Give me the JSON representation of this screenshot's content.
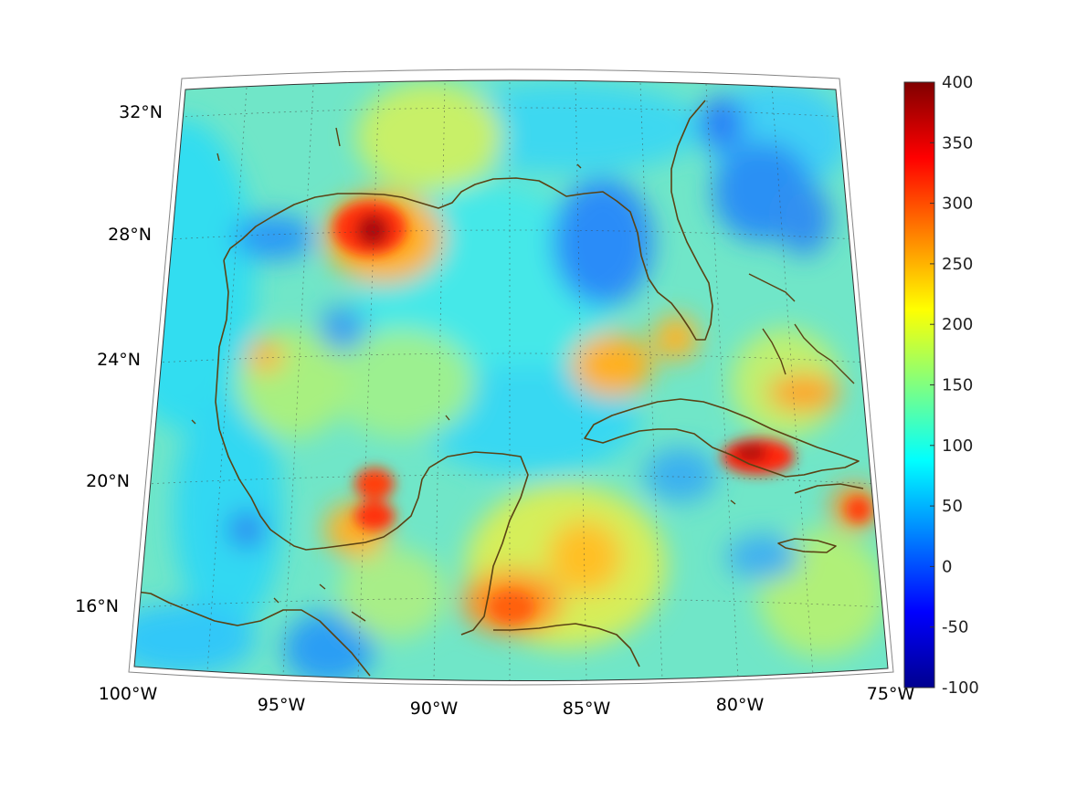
{
  "map": {
    "lon_labels": [
      "100°W",
      "95°W",
      "90°W",
      "85°W",
      "80°W",
      "75°W"
    ],
    "lat_labels": [
      "32°N",
      "28°N",
      "24°N",
      "20°N",
      "16°N"
    ],
    "colorbar": {
      "ticks": [
        "400",
        "350",
        "300",
        "250",
        "200",
        "150",
        "100",
        "50",
        "0",
        "-50",
        "-100"
      ],
      "min": -100,
      "max": 400,
      "colormap": "jet",
      "colors": [
        "#00008f",
        "#0000ff",
        "#0080ff",
        "#00ffff",
        "#80ff80",
        "#ffff00",
        "#ff8000",
        "#ff0000",
        "#800000"
      ]
    },
    "field_base_color": "#70e6c8",
    "coast_color": "#5a4214"
  }
}
